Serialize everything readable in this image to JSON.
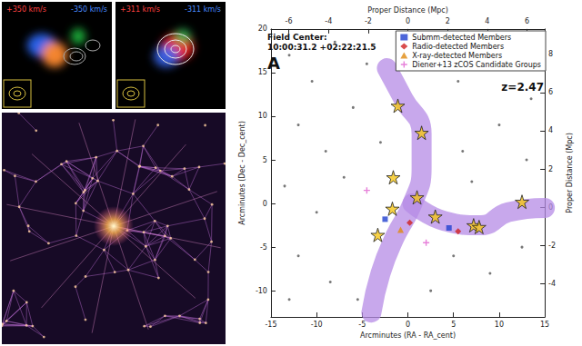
{
  "panels": {
    "velocity_maps": [
      {
        "labels": [
          "+350 km/s",
          "-350 km/s"
        ]
      },
      {
        "labels": [
          "+311 km/s",
          "-311 km/s"
        ]
      }
    ]
  },
  "chart_data": {
    "type": "scatter",
    "panel_letter": "A",
    "annotations": [
      "Field Center:",
      "10:00:31.2 +02:22:21.5"
    ],
    "redshift_label": "z=2.47",
    "x_label": "Arcminutes (RA - RA_cent)",
    "y_label": "Arcminutes (Dec - Dec_cent)",
    "x2_label": "Proper Distance (Mpc)",
    "y2_label": "Proper Distance (Mpc)",
    "xlim": [
      -15,
      15
    ],
    "xticks": [
      -15,
      -10,
      -5,
      0,
      5,
      10,
      15
    ],
    "ylim": [
      -13,
      20
    ],
    "yticks": [
      -10,
      -5,
      0,
      5,
      10,
      15,
      20
    ],
    "x2lim": [
      -6.9,
      6.9
    ],
    "x2ticks": [
      -6,
      -4,
      -2,
      0,
      2,
      4,
      6
    ],
    "y2lim": [
      -5.75,
      9.33
    ],
    "y2ticks": [
      -4,
      -2,
      0,
      2,
      4,
      6,
      8
    ],
    "grid": false,
    "legend": "top-right",
    "series": [
      {
        "type": "line",
        "line_style": "band",
        "color": "#b58be6",
        "points": [
          [
            -2.3,
            15.5
          ],
          [
            -0.5,
            12
          ],
          [
            1.5,
            8
          ],
          [
            1.5,
            4
          ],
          [
            0.5,
            0
          ],
          [
            -1.5,
            -4
          ],
          [
            -3,
            -8
          ],
          [
            -4,
            -12.5
          ]
        ]
      },
      {
        "type": "line",
        "line_style": "band",
        "color": "#b58be6",
        "points": [
          [
            0.5,
            0
          ],
          [
            4,
            -2
          ],
          [
            8,
            -2.5
          ],
          [
            11,
            -1
          ],
          [
            15,
            -0.5
          ]
        ]
      },
      {
        "type": "scatter",
        "marker": "dot",
        "color": "#555555",
        "points": [
          [
            -13,
            17
          ],
          [
            -10.5,
            14
          ],
          [
            -8,
            18.5
          ],
          [
            -12,
            9
          ],
          [
            -9,
            6
          ],
          [
            -6,
            11
          ],
          [
            -4.5,
            16
          ],
          [
            3,
            17.5
          ],
          [
            5.5,
            14
          ],
          [
            8,
            16.5
          ],
          [
            12,
            18
          ],
          [
            13.5,
            12
          ],
          [
            10,
            9
          ],
          [
            6,
            6
          ],
          [
            -13.5,
            2
          ],
          [
            -10,
            -1
          ],
          [
            -7,
            3
          ],
          [
            -12,
            -6
          ],
          [
            -8.5,
            -9
          ],
          [
            -13,
            -11
          ],
          [
            5,
            -6
          ],
          [
            9,
            -8
          ],
          [
            12.5,
            -5
          ],
          [
            13,
            5
          ],
          [
            -5.5,
            -11
          ],
          [
            2.5,
            -10
          ],
          [
            7,
            2.5
          ],
          [
            -3,
            7
          ]
        ]
      },
      {
        "type": "scatter",
        "name": "Submm-detected Members",
        "marker": "square",
        "color": "#2040d0",
        "points": [
          [
            -2.5,
            -1.8
          ],
          [
            4.5,
            -2.8
          ]
        ]
      },
      {
        "type": "scatter",
        "name": "Radio-detected Members",
        "marker": "diamond",
        "color": "#d02020",
        "points": [
          [
            0.2,
            -2.2
          ],
          [
            5.5,
            -3.2
          ]
        ]
      },
      {
        "type": "scatter",
        "name": "X-ray-detected Members",
        "marker": "triangle",
        "color": "#e08a10",
        "points": [
          [
            -0.8,
            -3.0
          ]
        ]
      },
      {
        "type": "scatter",
        "name": "Diener+13 zCOS Candidate Groups",
        "marker": "plus",
        "color": "#e060d0",
        "points": [
          [
            2.0,
            -4.5
          ],
          [
            -4.5,
            1.5
          ]
        ]
      },
      {
        "type": "scatter",
        "marker": "star",
        "color": "#f5c518",
        "points": [
          [
            -1.1,
            11.2
          ],
          [
            1.5,
            8.1
          ],
          [
            -1.6,
            3.0
          ],
          [
            1.0,
            0.7
          ],
          [
            -1.7,
            -0.6
          ],
          [
            3.0,
            -1.5
          ],
          [
            7.2,
            -2.5
          ],
          [
            7.8,
            -2.7
          ],
          [
            12.5,
            0.2
          ],
          [
            -3.3,
            -3.6
          ]
        ]
      }
    ]
  }
}
